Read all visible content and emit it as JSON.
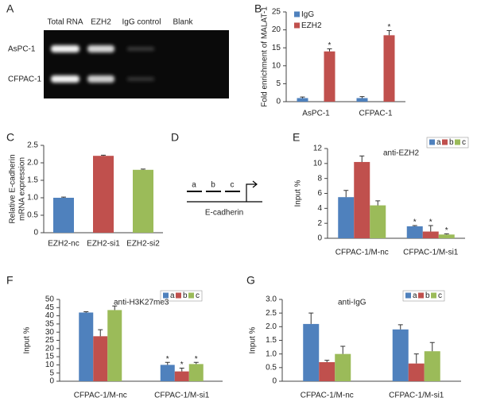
{
  "gel": {
    "panel": "A",
    "lanes": [
      "Total RNA",
      "EZH2",
      "IgG control",
      "Blank"
    ],
    "rows": [
      "AsPC-1",
      "CFPAC-1"
    ]
  },
  "diagram": {
    "panel": "D",
    "sites": [
      "a",
      "b",
      "c"
    ],
    "gene": "E-cadherin"
  },
  "chart_data": [
    {
      "panel": "B",
      "type": "bar",
      "categories": [
        "AsPC-1",
        "CFPAC-1"
      ],
      "ylabel": "Fold enrichment of MALAT-1",
      "ylim": [
        0,
        25
      ],
      "yticks": [
        0,
        5,
        10,
        15,
        20,
        25
      ],
      "legend": "upper left",
      "series": [
        {
          "name": "IgG",
          "color": "#4f81bd",
          "values": [
            1,
            1
          ],
          "errors": [
            0.3,
            0.4
          ]
        },
        {
          "name": "EZH2",
          "color": "#c0504d",
          "values": [
            14,
            18.5
          ],
          "errors": [
            0.7,
            1.3
          ],
          "significance": [
            "*",
            "*"
          ]
        }
      ]
    },
    {
      "panel": "C",
      "type": "bar",
      "categories": [
        "EZH2-nc",
        "EZH2-si1",
        "EZH2-si2"
      ],
      "ylabel": [
        "Relative E-cadherin",
        "mRNA expression"
      ],
      "ylim": [
        0,
        2.5
      ],
      "yticks": [
        0,
        0.5,
        {
          "value": 1,
          "label": "1.0"
        },
        1.5,
        {
          "value": 2,
          "label": "2.0"
        },
        2.5
      ],
      "values": [
        1,
        2.2,
        1.8
      ],
      "errors": [
        0.02,
        0.02,
        0.02
      ],
      "colors": [
        "#4f81bd",
        "#c0504d",
        "#9bbb59"
      ]
    },
    {
      "panel": "E",
      "type": "bar",
      "categories": [
        "CFPAC-1/M-nc",
        "CFPAC-1/M-si1"
      ],
      "ylabel": "Input %",
      "annotation": "anti-EZH2",
      "ylim": [
        0,
        12
      ],
      "yticks": [
        0,
        2,
        4,
        6,
        8,
        10,
        12
      ],
      "legend": "upper right",
      "series": [
        {
          "name": "a",
          "color": "#4f81bd",
          "values": [
            5.5,
            1.6
          ],
          "errors": [
            0.9,
            0.1
          ],
          "significance": [
            null,
            "*"
          ]
        },
        {
          "name": "b",
          "color": "#c0504d",
          "values": [
            10.2,
            0.9
          ],
          "errors": [
            0.8,
            0.8
          ],
          "significance": [
            null,
            "*"
          ]
        },
        {
          "name": "c",
          "color": "#9bbb59",
          "values": [
            4.4,
            0.5
          ],
          "errors": [
            0.6,
            0.1
          ],
          "significance": [
            null,
            "*"
          ]
        }
      ]
    },
    {
      "panel": "F",
      "type": "bar",
      "categories": [
        "CFPAC-1/M-nc",
        "CFPAC-1/M-si1"
      ],
      "ylabel": "Input %",
      "annotation": "anti-H3K27me3",
      "ylim": [
        0,
        50
      ],
      "yticks": [
        0,
        5,
        10,
        15,
        20,
        25,
        30,
        35,
        40,
        45,
        50
      ],
      "legend": "upper right",
      "series": [
        {
          "name": "a",
          "color": "#4f81bd",
          "values": [
            42,
            10
          ],
          "errors": [
            0.5,
            1.5
          ],
          "significance": [
            null,
            "*"
          ]
        },
        {
          "name": "b",
          "color": "#c0504d",
          "values": [
            27.5,
            6
          ],
          "errors": [
            4,
            2
          ],
          "significance": [
            null,
            "*"
          ]
        },
        {
          "name": "c",
          "color": "#9bbb59",
          "values": [
            43.5,
            10.5
          ],
          "errors": [
            2.5,
            1
          ],
          "significance": [
            null,
            "*"
          ]
        }
      ]
    },
    {
      "panel": "G",
      "type": "bar",
      "categories": [
        "CFPAC-1/M-nc",
        "CFPAC-1/M-si1"
      ],
      "ylabel": "Input %",
      "annotation": "anti-IgG",
      "ylim": [
        0,
        3
      ],
      "yticks": [
        0,
        0.5,
        {
          "value": 1,
          "label": "1.0"
        },
        1.5,
        {
          "value": 2,
          "label": "2.0"
        },
        2.5,
        {
          "value": 3,
          "label": "3.0"
        }
      ],
      "legend": "upper right",
      "series": [
        {
          "name": "a",
          "color": "#4f81bd",
          "values": [
            2.1,
            1.9
          ],
          "errors": [
            0.4,
            0.17
          ]
        },
        {
          "name": "b",
          "color": "#c0504d",
          "values": [
            0.7,
            0.65
          ],
          "errors": [
            0.07,
            0.35
          ]
        },
        {
          "name": "c",
          "color": "#9bbb59",
          "values": [
            1,
            1.1
          ],
          "errors": [
            0.28,
            0.32
          ]
        }
      ]
    }
  ]
}
